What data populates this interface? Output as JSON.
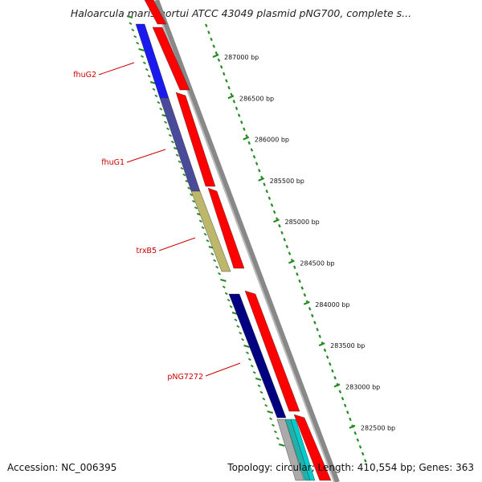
{
  "title": "Haloarcula marismortui ATCC 43049 plasmid pNG700, complete s...",
  "accession": "Accession: NC_006395",
  "summary": "Topology: circular; Length: 410,554 bp; Genes: 363",
  "colors": {
    "forward_feature": "#ff0000",
    "backbone": "#888888",
    "tick": "#228b22",
    "gene_label": "#cc0000"
  },
  "ruler": {
    "tick_labels": [
      "287000 bp",
      "286500 bp",
      "286000 bp",
      "285500 bp",
      "285000 bp",
      "284500 bp",
      "284000 bp",
      "283500 bp",
      "283000 bp",
      "282500 bp"
    ]
  },
  "genes": [
    {
      "label": "fhuG2",
      "color": "#1a1aee"
    },
    {
      "label": "fhuG1",
      "color": "#4a4a9a"
    },
    {
      "label": "trxB5",
      "color": "#bdb76b"
    },
    {
      "label": "pNG7272",
      "color": "#000080"
    }
  ]
}
